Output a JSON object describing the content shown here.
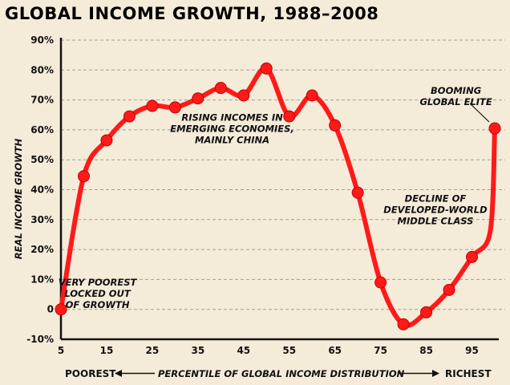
{
  "chart_data": {
    "type": "line",
    "title": "GLOBAL INCOME GROWTH, 1988–2008",
    "ylabel": "REAL INCOME GROWTH",
    "xlabel": "PERCENTILE OF GLOBAL INCOME DISTRIBUTION",
    "xlabel_left": "POOREST",
    "xlabel_right": "RICHEST",
    "xlim": [
      5,
      100
    ],
    "ylim": [
      -10,
      90
    ],
    "xticks": [
      5,
      15,
      25,
      35,
      45,
      55,
      65,
      75,
      85,
      95
    ],
    "yticks": [
      -10,
      0,
      10,
      20,
      30,
      40,
      50,
      60,
      70,
      80,
      90
    ],
    "ytick_labels": [
      "-10%",
      "0",
      "10%",
      "20%",
      "30%",
      "40%",
      "50%",
      "60%",
      "70%",
      "80%",
      "90%"
    ],
    "grid": "horizontal-dashed",
    "series": [
      {
        "color": "#ff1a1a",
        "x": [
          5,
          10,
          15,
          20,
          25,
          30,
          35,
          40,
          45,
          50,
          55,
          60,
          65,
          70,
          75,
          80,
          85,
          90,
          95,
          99,
          100
        ],
        "y": [
          0,
          44.5,
          56.5,
          64.5,
          68,
          67.5,
          70.5,
          74,
          71.5,
          80.5,
          64.5,
          71.5,
          61.5,
          39,
          9,
          -5,
          -1,
          6.5,
          17.5,
          26,
          60.5
        ]
      }
    ],
    "annotations": [
      {
        "lines": [
          "VERY POOREST",
          "LOCKED OUT",
          "OF GROWTH"
        ],
        "x": 13,
        "y": 8
      },
      {
        "lines": [
          "RISING INCOMES IN",
          "EMERGING ECONOMIES,",
          "MAINLY CHINA"
        ],
        "x": 42.5,
        "y": 63
      },
      {
        "lines": [
          "DECLINE OF",
          "DEVELOPED-WORLD",
          "MIDDLE CLASS"
        ],
        "x": 87,
        "y": 36
      },
      {
        "lines": [
          "BOOMING",
          "GLOBAL ELITE"
        ],
        "x": 91.5,
        "y": 72
      }
    ]
  }
}
